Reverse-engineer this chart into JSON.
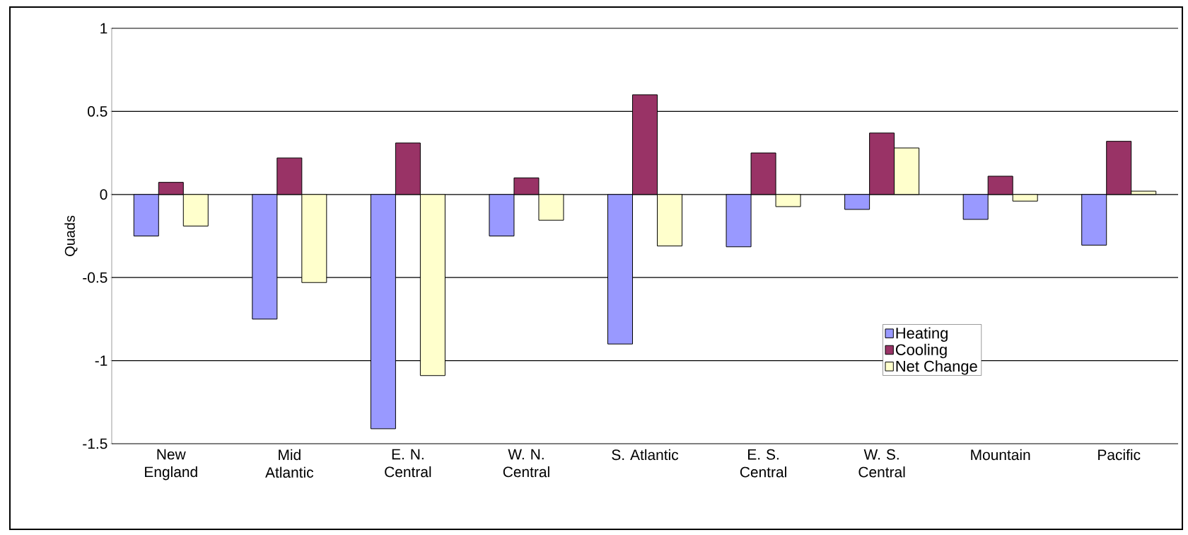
{
  "chart_data": {
    "type": "bar",
    "ylabel": "Quads",
    "categories": [
      "New England",
      "Mid Atlantic",
      "E. N. Central",
      "W. N. Central",
      "S. Atlantic",
      "E. S. Central",
      "W. S. Central",
      "Mountain",
      "Pacific"
    ],
    "series": [
      {
        "name": "Heating",
        "color": "#9999ff",
        "values": [
          -0.25,
          -0.75,
          -1.41,
          -0.25,
          -0.9,
          -0.315,
          -0.09,
          -0.15,
          -0.305
        ]
      },
      {
        "name": "Cooling",
        "color": "#993366",
        "values": [
          0.073,
          0.22,
          0.31,
          0.1,
          0.6,
          0.25,
          0.37,
          0.11,
          0.32
        ]
      },
      {
        "name": "Net Change",
        "color": "#ffffcc",
        "values": [
          -0.19,
          -0.53,
          -1.09,
          -0.155,
          -0.31,
          -0.073,
          0.28,
          -0.04,
          0.02
        ]
      }
    ],
    "ylim": [
      -1.5,
      1
    ],
    "yticks": [
      -1.5,
      -1,
      -0.5,
      0,
      0.5,
      1
    ],
    "grid": "y",
    "legend": "right"
  }
}
